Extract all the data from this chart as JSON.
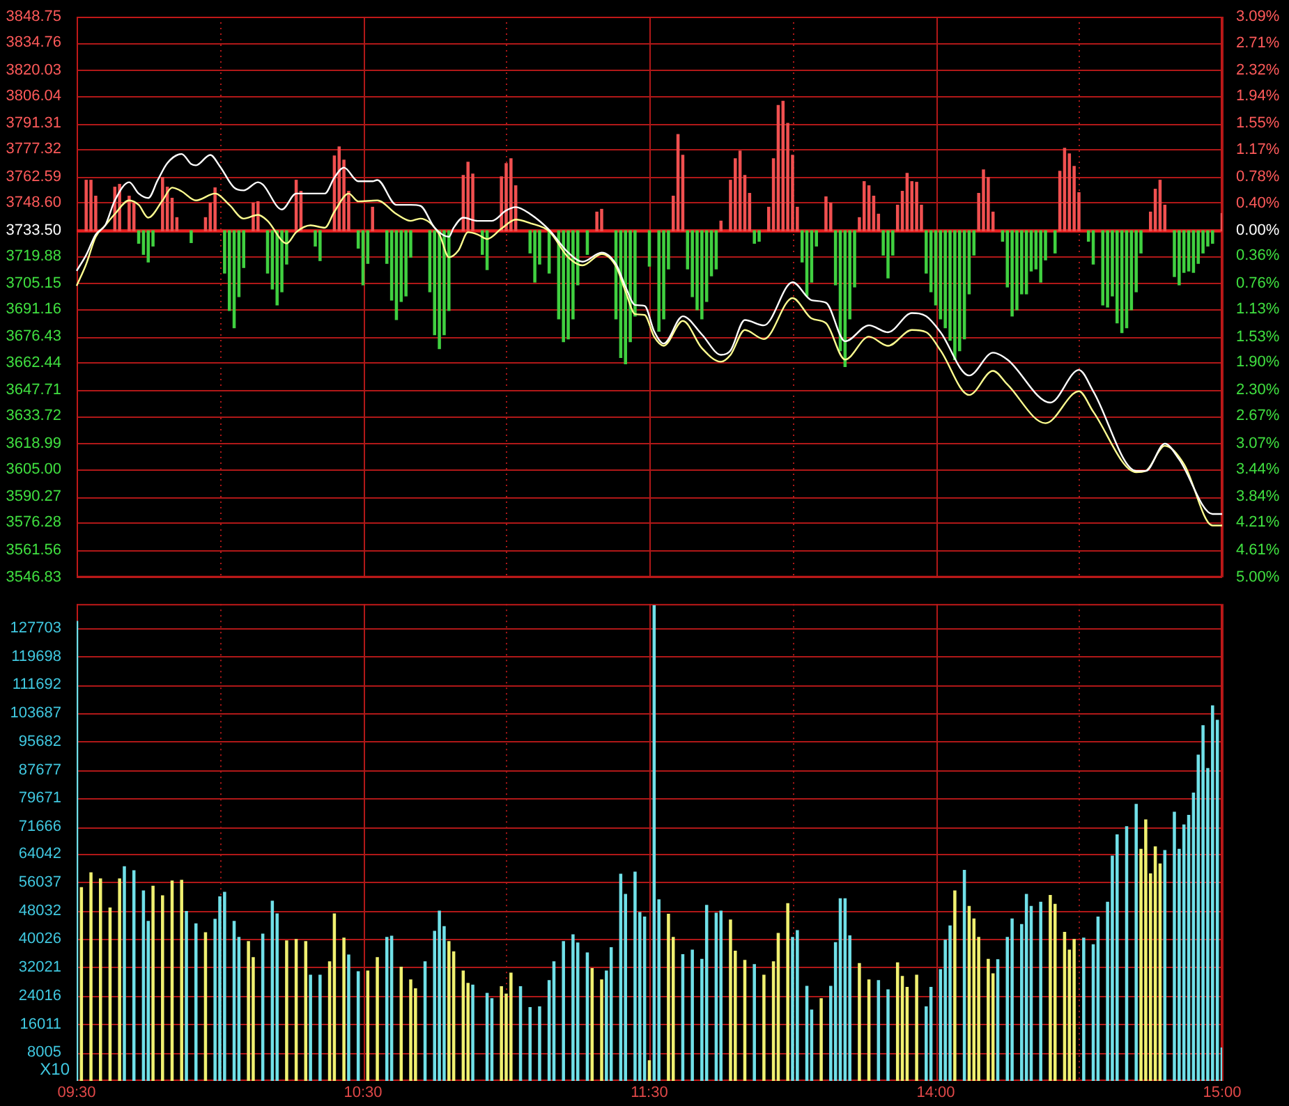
{
  "chart_data": [
    {
      "type": "line",
      "grid": true,
      "legend": false,
      "tick_labels": "y",
      "categories": [
        null,
        null,
        null,
        null,
        null,
        null,
        null,
        null,
        null,
        null,
        null,
        null,
        null,
        null,
        null,
        null,
        null,
        null,
        null,
        null,
        null,
        null,
        null,
        null,
        null,
        null,
        null,
        null,
        null,
        null,
        null,
        null,
        null,
        null,
        null,
        null,
        null,
        null,
        null,
        null,
        null,
        null,
        null,
        null,
        null,
        null,
        null,
        null,
        null,
        null,
        null,
        null,
        null,
        null,
        null,
        null,
        null,
        null,
        null,
        null,
        null,
        null,
        null,
        null,
        null,
        null,
        null,
        null,
        null,
        null,
        null,
        null,
        null,
        null,
        null,
        null,
        null,
        null,
        null,
        null,
        null,
        null,
        null,
        null,
        null,
        null,
        null,
        null,
        null,
        null,
        null,
        null,
        null,
        null,
        null,
        null,
        null,
        null,
        null,
        null,
        null,
        null,
        null,
        null,
        null,
        null,
        null,
        null,
        null,
        null,
        null,
        null,
        null,
        null,
        null,
        null,
        null,
        null,
        null,
        null,
        null,
        null,
        null,
        null,
        null,
        null,
        null,
        null,
        null,
        null,
        null,
        null,
        null,
        null,
        null,
        null,
        null,
        null,
        null,
        null,
        null,
        null,
        null,
        null,
        null,
        null,
        null,
        null,
        null,
        null,
        null,
        null,
        null,
        null,
        null,
        null,
        null,
        null,
        null,
        null,
        null,
        null,
        null,
        null,
        null,
        null,
        null,
        null,
        null,
        null,
        null,
        null,
        null,
        null,
        null,
        null,
        null,
        null,
        null,
        null,
        null,
        null,
        null,
        null,
        null,
        null,
        null,
        null,
        null,
        null,
        null,
        null,
        null,
        null,
        null,
        null,
        null,
        null,
        null,
        null,
        null,
        null,
        null,
        null,
        null,
        null,
        null,
        null,
        null,
        null,
        null,
        null,
        null,
        null,
        null,
        null,
        null,
        null,
        null,
        null,
        null,
        null,
        null,
        null,
        null,
        null,
        null,
        null,
        null,
        null,
        null,
        null,
        null,
        null,
        null,
        null,
        null,
        null,
        null,
        null,
        null
      ],
      "ylim": [
        3546.83,
        3848.75
      ],
      "yticks": [
        3848.75,
        3834.76,
        3820.03,
        3806.04,
        3791.31,
        3777.32,
        3762.59,
        {
          "value": 3748.6,
          "label": "3748.60"
        },
        {
          "value": 3733.5,
          "label": "3733.50"
        },
        3719.88,
        3705.15,
        3691.16,
        3676.43,
        3662.44,
        3647.71,
        3633.72,
        3618.99,
        {
          "value": 3605,
          "label": "3605.00"
        },
        3590.27,
        3576.28,
        3561.56,
        3546.83
      ],
      "y2lim": [
        -5,
        3.09
      ],
      "y2ticks": [
        {
          "value": 3.09,
          "label": "3.09%"
        },
        {
          "value": 2.71,
          "label": "2.71%"
        },
        {
          "value": 2.32,
          "label": "2.32%"
        },
        {
          "value": 1.94,
          "label": "1.94%"
        },
        {
          "value": 1.55,
          "label": "1.55%"
        },
        {
          "value": 1.17,
          "label": "1.17%"
        },
        {
          "value": 0.78,
          "label": "0.78%"
        },
        {
          "value": 0.4,
          "label": "0.40%"
        },
        {
          "value": 0,
          "label": "0.00%"
        },
        {
          "value": -0.36,
          "label": "0.36%"
        },
        {
          "value": -0.76,
          "label": "0.76%"
        },
        {
          "value": -1.13,
          "label": "1.13%"
        },
        {
          "value": -1.53,
          "label": "1.53%"
        },
        {
          "value": -1.9,
          "label": "1.90%"
        },
        {
          "value": -2.3,
          "label": "2.30%"
        },
        {
          "value": -2.67,
          "label": "2.67%"
        },
        {
          "value": -3.07,
          "label": "3.07%"
        },
        {
          "value": -3.44,
          "label": "3.44%"
        },
        {
          "value": -3.84,
          "label": "3.84%"
        },
        {
          "value": -4.21,
          "label": "4.21%"
        },
        {
          "value": -4.61,
          "label": "4.61%"
        },
        {
          "value": -5,
          "label": "5.00%"
        }
      ],
      "ref_lines": [
        {
          "axis": "y",
          "value": 3733.5,
          "color": "#e82020"
        }
      ],
      "series": [
        {
          "type": "bar",
          "axis": "y2",
          "color": "#f05050",
          "values": [
            null,
            null,
            0.73,
            0.73,
            0.5,
            null,
            null,
            null,
            0.63,
            0.67,
            null,
            0.5,
            0.4,
            null,
            null,
            null,
            null,
            null,
            0.77,
            0.63,
            0.47,
            0.19,
            null,
            null,
            null,
            null,
            null,
            0.19,
            0.4,
            0.62,
            null,
            null,
            null,
            null,
            null,
            null,
            null,
            0.4,
            0.42,
            null,
            null,
            null,
            null,
            null,
            null,
            null,
            0.73,
            0.57,
            null,
            null,
            null,
            null,
            null,
            null,
            1.08,
            1.21,
            1.02,
            0.57,
            null,
            null,
            null,
            null,
            0.34,
            null,
            null,
            null,
            null,
            null,
            null,
            null,
            null,
            null,
            null,
            null,
            null,
            null,
            null,
            null,
            null,
            null,
            null,
            0.8,
            0.99,
            0.82,
            null,
            null,
            null,
            null,
            null,
            0.78,
            0.97,
            1.04,
            0.65,
            null,
            null,
            null,
            null,
            null,
            null,
            null,
            null,
            null,
            null,
            null,
            null,
            null,
            null,
            null,
            null,
            0.27,
            0.31,
            null,
            null,
            null,
            null,
            null,
            null,
            null,
            null,
            null,
            null,
            null,
            null,
            null,
            null,
            0.5,
            1.39,
            1.09,
            null,
            null,
            null,
            null,
            null,
            null,
            null,
            0.14,
            null,
            0.73,
            1.04,
            1.15,
            0.8,
            0.54,
            null,
            null,
            null,
            0.34,
            1.04,
            1.81,
            1.87,
            1.55,
            1.09,
            0.34,
            null,
            null,
            null,
            null,
            null,
            0.49,
            0.4,
            null,
            null,
            null,
            null,
            null,
            0.19,
            0.71,
            0.65,
            0.5,
            0.24,
            null,
            null,
            null,
            0.37,
            0.57,
            0.83,
            0.71,
            0.7,
            0.37,
            null,
            null,
            null,
            null,
            null,
            null,
            null,
            null,
            null,
            null,
            null,
            0.54,
            0.88,
            0.77,
            0.27,
            null,
            null,
            null,
            null,
            null,
            null,
            null,
            null,
            null,
            null,
            null,
            null,
            null,
            0.86,
            1.19,
            1.11,
            0.93,
            0.55,
            null,
            null,
            null,
            null,
            null,
            null,
            null,
            null,
            null,
            null,
            null,
            null,
            null,
            null,
            0.27,
            0.6,
            0.73,
            0.37,
            null,
            null,
            null,
            null,
            null,
            null,
            null,
            null,
            null,
            null,
            null,
            0.25
          ]
        },
        {
          "type": "bar",
          "axis": "y2",
          "color": "#40d040",
          "values": [
            null,
            null,
            null,
            null,
            null,
            null,
            null,
            null,
            null,
            null,
            null,
            null,
            null,
            -0.18,
            -0.34,
            -0.45,
            -0.22,
            null,
            null,
            null,
            null,
            null,
            null,
            null,
            -0.17,
            null,
            null,
            null,
            null,
            null,
            null,
            -0.61,
            -1.15,
            -1.4,
            -0.95,
            -0.53,
            null,
            null,
            null,
            null,
            -0.61,
            -0.84,
            -1.07,
            -0.88,
            -0.48,
            null,
            null,
            null,
            null,
            null,
            -0.22,
            -0.43,
            null,
            null,
            null,
            null,
            null,
            null,
            null,
            -0.25,
            -0.78,
            -0.47,
            null,
            null,
            null,
            -0.47,
            -1.0,
            -1.28,
            -1.02,
            -0.94,
            -0.38,
            null,
            null,
            null,
            -0.88,
            -1.5,
            -1.7,
            -1.5,
            -1.15,
            null,
            null,
            null,
            null,
            null,
            null,
            -0.34,
            -0.56,
            null,
            null,
            null,
            null,
            null,
            null,
            null,
            null,
            -0.32,
            -0.74,
            -0.48,
            null,
            -0.61,
            null,
            -1.27,
            -1.6,
            -1.56,
            -1.27,
            -0.78,
            null,
            -0.34,
            null,
            null,
            null,
            null,
            null,
            -1.27,
            -1.83,
            -1.92,
            -1.6,
            -1.23,
            null,
            null,
            -0.51,
            null,
            -1.45,
            -1.27,
            -0.55,
            null,
            null,
            null,
            -0.55,
            -0.95,
            -1.14,
            -1.27,
            -1.02,
            -0.65,
            -0.55,
            null,
            null,
            null,
            null,
            null,
            null,
            null,
            -0.18,
            -0.15,
            null,
            null,
            null,
            null,
            null,
            null,
            null,
            null,
            -0.45,
            -0.94,
            -0.74,
            -0.22,
            null,
            null,
            null,
            -0.78,
            -1.73,
            -1.96,
            -1.27,
            -0.81,
            null,
            null,
            null,
            null,
            null,
            -0.35,
            -0.68,
            -0.35,
            null,
            null,
            null,
            null,
            null,
            null,
            -0.61,
            -0.88,
            -1.07,
            -1.27,
            -1.4,
            -1.58,
            -1.86,
            -1.73,
            -1.56,
            -0.91,
            -0.35,
            null,
            null,
            null,
            null,
            null,
            -0.15,
            -0.81,
            -1.23,
            -1.14,
            -0.91,
            -0.91,
            -0.58,
            -0.55,
            -0.74,
            -0.42,
            null,
            -0.32,
            null,
            null,
            null,
            null,
            null,
            null,
            -0.15,
            -0.48,
            null,
            -1.07,
            -1.1,
            -0.94,
            -1.33,
            -1.47,
            -1.4,
            -1.14,
            -0.88,
            -0.32,
            null,
            null,
            null,
            null,
            null,
            null,
            -0.66,
            -0.78,
            -0.6,
            -0.58,
            -0.6,
            -0.47,
            -0.32,
            -0.22,
            -0.18,
            null,
            null
          ]
        },
        {
          "type": "line",
          "color": "#ffffff",
          "values": [
            3711.9,
            null,
            3720.4,
            null,
            3731.5,
            null,
            3736.4,
            null,
            3749.8,
            null,
            null,
            3759.6,
            null,
            3753.5,
            null,
            3751.1,
            null,
            3760.8,
            null,
            3769.9,
            null,
            null,
            3774.8,
            null,
            3769.4,
            3768.7,
            null,
            null,
            3774.3,
            null,
            3768.2,
            null,
            null,
            3756.7,
            null,
            3755.2,
            null,
            null,
            3759.6,
            3758.4,
            null,
            null,
            null,
            3744.9,
            null,
            null,
            3753.5,
            null,
            null,
            3753.5,
            null,
            null,
            3753.5,
            null,
            3762.1,
            null,
            3767.5,
            null,
            null,
            3760.1,
            null,
            null,
            3760.1,
            3760.8,
            null,
            null,
            null,
            3747.4,
            null,
            null,
            3747.4,
            null,
            3746.9,
            null,
            null,
            3735.1,
            null,
            null,
            3730.2,
            3735.1,
            null,
            3740.5,
            null,
            null,
            3738.8,
            null,
            null,
            3738.8,
            null,
            null,
            3744.4,
            null,
            3746.2,
            null,
            null,
            3742.5,
            null,
            null,
            null,
            3733.9,
            null,
            null,
            null,
            3721.7,
            null,
            null,
            3716.8,
            null,
            null,
            null,
            3721.7,
            null,
            null,
            3715.5,
            null,
            3703.3,
            null,
            3693.5,
            null,
            3693.0,
            null,
            3679.3,
            null,
            3672.7,
            null,
            null,
            null,
            3687.4,
            null,
            null,
            null,
            3677.6,
            null,
            null,
            null,
            3666.6,
            null,
            3669.0,
            null,
            null,
            3685.4,
            null,
            null,
            null,
            3682.5,
            null,
            null,
            null,
            null,
            null,
            3705.7,
            null,
            null,
            null,
            3696.0,
            null,
            null,
            3694.7,
            null,
            null,
            null,
            3673.9,
            null,
            null,
            null,
            null,
            3682.5,
            null,
            null,
            null,
            3678.8,
            null,
            null,
            null,
            null,
            3689.1,
            null,
            null,
            3687.4,
            null,
            null,
            3678.8,
            null,
            null,
            null,
            null,
            null,
            3655.5,
            null,
            null,
            null,
            null,
            3667.8,
            null,
            null,
            3664.1,
            null,
            null,
            null,
            null,
            null,
            null,
            null,
            null,
            3640.9,
            null,
            null,
            null,
            null,
            null,
            3658.5,
            null,
            null,
            3647.0,
            null,
            null,
            null,
            null,
            null,
            null,
            null,
            null,
            3604.1,
            null,
            3604.1,
            null,
            null,
            null,
            3618.8,
            null,
            null,
            3610.3,
            null,
            null,
            null,
            null,
            null,
            null,
            3580.9,
            null,
            3580.9
          ]
        },
        {
          "type": "line",
          "color": "#ffff90",
          "values": [
            3703.8,
            null,
            3715.5,
            null,
            3730.2,
            null,
            3736.4,
            null,
            3742.5,
            null,
            null,
            3749.8,
            null,
            3747.4,
            null,
            3740.5,
            null,
            null,
            3749.8,
            null,
            3756.7,
            null,
            3754.7,
            null,
            null,
            3749.8,
            null,
            null,
            null,
            3753.5,
            null,
            null,
            3747.4,
            null,
            null,
            3740.0,
            null,
            null,
            3742.0,
            null,
            3738.8,
            null,
            null,
            null,
            3726.6,
            null,
            3732.7,
            null,
            null,
            3736.4,
            null,
            null,
            3735.1,
            null,
            3743.7,
            null,
            null,
            3753.5,
            null,
            3749.3,
            null,
            null,
            null,
            3749.8,
            null,
            null,
            null,
            3742.5,
            null,
            null,
            3738.8,
            null,
            3740.0,
            null,
            null,
            null,
            3731.5,
            null,
            3719.2,
            null,
            3722.9,
            null,
            3732.7,
            null,
            3731.5,
            null,
            3729.0,
            null,
            null,
            3734.6,
            null,
            null,
            3739.5,
            null,
            null,
            3737.6,
            null,
            null,
            null,
            3733.2,
            null,
            null,
            null,
            3719.2,
            null,
            null,
            3714.8,
            null,
            null,
            null,
            3720.9,
            null,
            null,
            3714.3,
            null,
            3700.8,
            null,
            3688.6,
            null,
            3688.1,
            null,
            3676.4,
            null,
            3671.5,
            null,
            null,
            null,
            3684.9,
            null,
            null,
            null,
            3670.2,
            null,
            null,
            null,
            3662.9,
            null,
            3666.6,
            null,
            null,
            3680.0,
            null,
            null,
            null,
            3675.1,
            null,
            null,
            null,
            null,
            null,
            3697.2,
            null,
            null,
            null,
            3686.2,
            null,
            null,
            3683.7,
            null,
            null,
            null,
            3664.1,
            null,
            null,
            null,
            null,
            3676.4,
            null,
            null,
            null,
            3671.5,
            null,
            null,
            null,
            null,
            3680.0,
            null,
            null,
            3678.8,
            null,
            null,
            3669.0,
            null,
            null,
            null,
            null,
            null,
            3645.0,
            null,
            null,
            null,
            null,
            3658.0,
            null,
            null,
            3650.7,
            null,
            null,
            null,
            null,
            null,
            null,
            null,
            3629.8,
            null,
            null,
            null,
            null,
            null,
            null,
            3647.0,
            null,
            null,
            3636.0,
            null,
            null,
            null,
            null,
            null,
            null,
            null,
            null,
            3603.4,
            null,
            3604.1,
            null,
            null,
            null,
            3617.6,
            null,
            null,
            null,
            3607.8,
            null,
            null,
            null,
            null,
            null,
            3574.7,
            null,
            3574.7
          ]
        }
      ]
    },
    {
      "type": "bar",
      "grid": true,
      "legend": false,
      "ylabel": "X10",
      "categories": [
        "09:30",
        null,
        null,
        null,
        null,
        null,
        null,
        null,
        null,
        null,
        null,
        null,
        null,
        null,
        null,
        null,
        null,
        null,
        null,
        null,
        null,
        null,
        null,
        null,
        null,
        null,
        null,
        null,
        null,
        null,
        null,
        null,
        null,
        null,
        null,
        null,
        null,
        null,
        null,
        null,
        null,
        null,
        null,
        null,
        null,
        null,
        null,
        null,
        null,
        null,
        null,
        null,
        null,
        null,
        null,
        null,
        null,
        null,
        null,
        null,
        "10:30",
        null,
        null,
        null,
        null,
        null,
        null,
        null,
        null,
        null,
        null,
        null,
        null,
        null,
        null,
        null,
        null,
        null,
        null,
        null,
        null,
        null,
        null,
        null,
        null,
        null,
        null,
        null,
        null,
        null,
        null,
        null,
        null,
        null,
        null,
        null,
        null,
        null,
        null,
        null,
        null,
        null,
        null,
        null,
        null,
        null,
        null,
        null,
        null,
        null,
        null,
        null,
        null,
        null,
        null,
        null,
        null,
        null,
        null,
        null,
        "11:30",
        null,
        null,
        null,
        null,
        null,
        null,
        null,
        null,
        null,
        null,
        null,
        null,
        null,
        null,
        null,
        null,
        null,
        null,
        null,
        null,
        null,
        null,
        null,
        null,
        null,
        null,
        null,
        null,
        null,
        null,
        null,
        null,
        null,
        null,
        null,
        null,
        null,
        null,
        null,
        null,
        null,
        null,
        null,
        null,
        null,
        null,
        null,
        null,
        null,
        null,
        null,
        null,
        null,
        null,
        null,
        null,
        null,
        null,
        null,
        "14:00",
        null,
        null,
        null,
        null,
        null,
        null,
        null,
        null,
        null,
        null,
        null,
        null,
        null,
        null,
        null,
        null,
        null,
        null,
        null,
        null,
        null,
        null,
        null,
        null,
        null,
        null,
        null,
        null,
        null,
        null,
        null,
        null,
        null,
        null,
        null,
        null,
        null,
        null,
        null,
        null,
        null,
        null,
        null,
        null,
        null,
        null,
        null,
        null,
        null,
        null,
        null,
        null,
        null,
        null,
        null,
        null,
        null,
        null,
        null,
        "15:00"
      ],
      "ylim": [
        0,
        134500
      ],
      "yticks": [
        8005,
        16011,
        24016,
        32021,
        40026,
        48032,
        56037,
        64042,
        71666,
        79671,
        87677,
        95682,
        103687,
        111692,
        119698,
        127703
      ],
      "series": [
        {
          "color": "#f0f070",
          "values": [
            null,
            54500,
            null,
            58700,
            null,
            57000,
            null,
            48800,
            null,
            57000,
            null,
            null,
            null,
            null,
            null,
            null,
            54900,
            null,
            52200,
            null,
            56400,
            null,
            56600,
            null,
            null,
            null,
            null,
            41800,
            null,
            null,
            null,
            null,
            null,
            null,
            null,
            null,
            39300,
            34800,
            null,
            null,
            null,
            null,
            null,
            null,
            39500,
            null,
            39900,
            null,
            39300,
            null,
            null,
            null,
            null,
            33600,
            47100,
            null,
            40300,
            null,
            null,
            null,
            null,
            31000,
            null,
            34800,
            null,
            null,
            null,
            null,
            32100,
            null,
            28500,
            26000,
            null,
            null,
            null,
            null,
            null,
            null,
            39300,
            36400,
            null,
            31000,
            27500,
            null,
            null,
            null,
            null,
            null,
            null,
            26600,
            24500,
            30400,
            null,
            null,
            null,
            null,
            null,
            null,
            null,
            null,
            null,
            null,
            null,
            null,
            null,
            null,
            null,
            null,
            31700,
            null,
            28500,
            null,
            null,
            null,
            null,
            null,
            null,
            null,
            null,
            null,
            5700,
            null,
            null,
            null,
            47000,
            40500,
            null,
            null,
            null,
            null,
            null,
            null,
            null,
            null,
            null,
            null,
            null,
            45400,
            36600,
            null,
            34000,
            null,
            null,
            null,
            29800,
            null,
            33600,
            41600,
            null,
            50000,
            null,
            null,
            null,
            null,
            null,
            null,
            23200,
            null,
            null,
            null,
            null,
            null,
            null,
            null,
            33100,
            null,
            28500,
            null,
            null,
            null,
            null,
            null,
            33300,
            29500,
            26400,
            null,
            29800,
            null,
            null,
            null,
            null,
            null,
            null,
            null,
            53600,
            null,
            null,
            49200,
            45700,
            40500,
            null,
            34300,
            30200,
            null,
            null,
            null,
            null,
            null,
            null,
            null,
            null,
            null,
            null,
            null,
            52300,
            49800,
            null,
            41900,
            36900,
            39900,
            null,
            null,
            null,
            null,
            null,
            null,
            null,
            null,
            null,
            null,
            null,
            null,
            null,
            65300,
            73600,
            58400,
            66000,
            61200,
            null,
            null,
            null,
            null,
            null,
            null,
            null,
            null,
            null,
            null,
            null,
            null,
            null
          ]
        },
        {
          "color": "#70e0e8",
          "values": [
            129600,
            null,
            null,
            null,
            null,
            null,
            null,
            null,
            null,
            null,
            60400,
            null,
            59300,
            null,
            53600,
            45000,
            null,
            null,
            null,
            null,
            null,
            null,
            null,
            47800,
            null,
            44300,
            null,
            null,
            null,
            45600,
            51900,
            53200,
            null,
            45000,
            40500,
            null,
            null,
            null,
            null,
            41400,
            null,
            50700,
            47100,
            null,
            null,
            null,
            null,
            null,
            null,
            29800,
            null,
            29800,
            null,
            null,
            null,
            null,
            null,
            35500,
            null,
            30800,
            null,
            null,
            null,
            null,
            null,
            40500,
            40800,
            null,
            null,
            null,
            null,
            null,
            null,
            33600,
            null,
            42200,
            47900,
            43500,
            null,
            null,
            null,
            null,
            null,
            27000,
            null,
            null,
            24700,
            23200,
            null,
            null,
            null,
            null,
            null,
            26600,
            null,
            20700,
            null,
            20900,
            null,
            28300,
            33600,
            null,
            39300,
            null,
            41200,
            38900,
            null,
            36100,
            null,
            null,
            null,
            31000,
            37600,
            null,
            58300,
            52600,
            null,
            58900,
            47500,
            46200,
            null,
            134000,
            51100,
            null,
            null,
            null,
            null,
            35600,
            null,
            36900,
            null,
            34300,
            49500,
            null,
            47300,
            47900,
            null,
            null,
            null,
            null,
            null,
            null,
            32800,
            null,
            null,
            null,
            null,
            null,
            null,
            null,
            40500,
            42400,
            null,
            26700,
            20000,
            null,
            null,
            null,
            26700,
            39000,
            51400,
            51400,
            40900,
            null,
            null,
            null,
            null,
            null,
            28300,
            null,
            25700,
            null,
            null,
            null,
            null,
            null,
            null,
            null,
            20900,
            26400,
            null,
            31400,
            39700,
            43700,
            null,
            null,
            59400,
            null,
            null,
            null,
            null,
            null,
            null,
            34200,
            null,
            40500,
            45700,
            null,
            44100,
            52600,
            49200,
            null,
            50400,
            null,
            null,
            null,
            null,
            null,
            null,
            null,
            null,
            40300,
            null,
            38400,
            46200,
            null,
            50400,
            63400,
            69400,
            null,
            71700,
            null,
            78000,
            null,
            null,
            null,
            null,
            null,
            65000,
            null,
            75800,
            65300,
            72200,
            74900,
            81200,
            91900,
            100200,
            88100,
            105800,
            101700,
            9300
          ]
        }
      ]
    }
  ]
}
